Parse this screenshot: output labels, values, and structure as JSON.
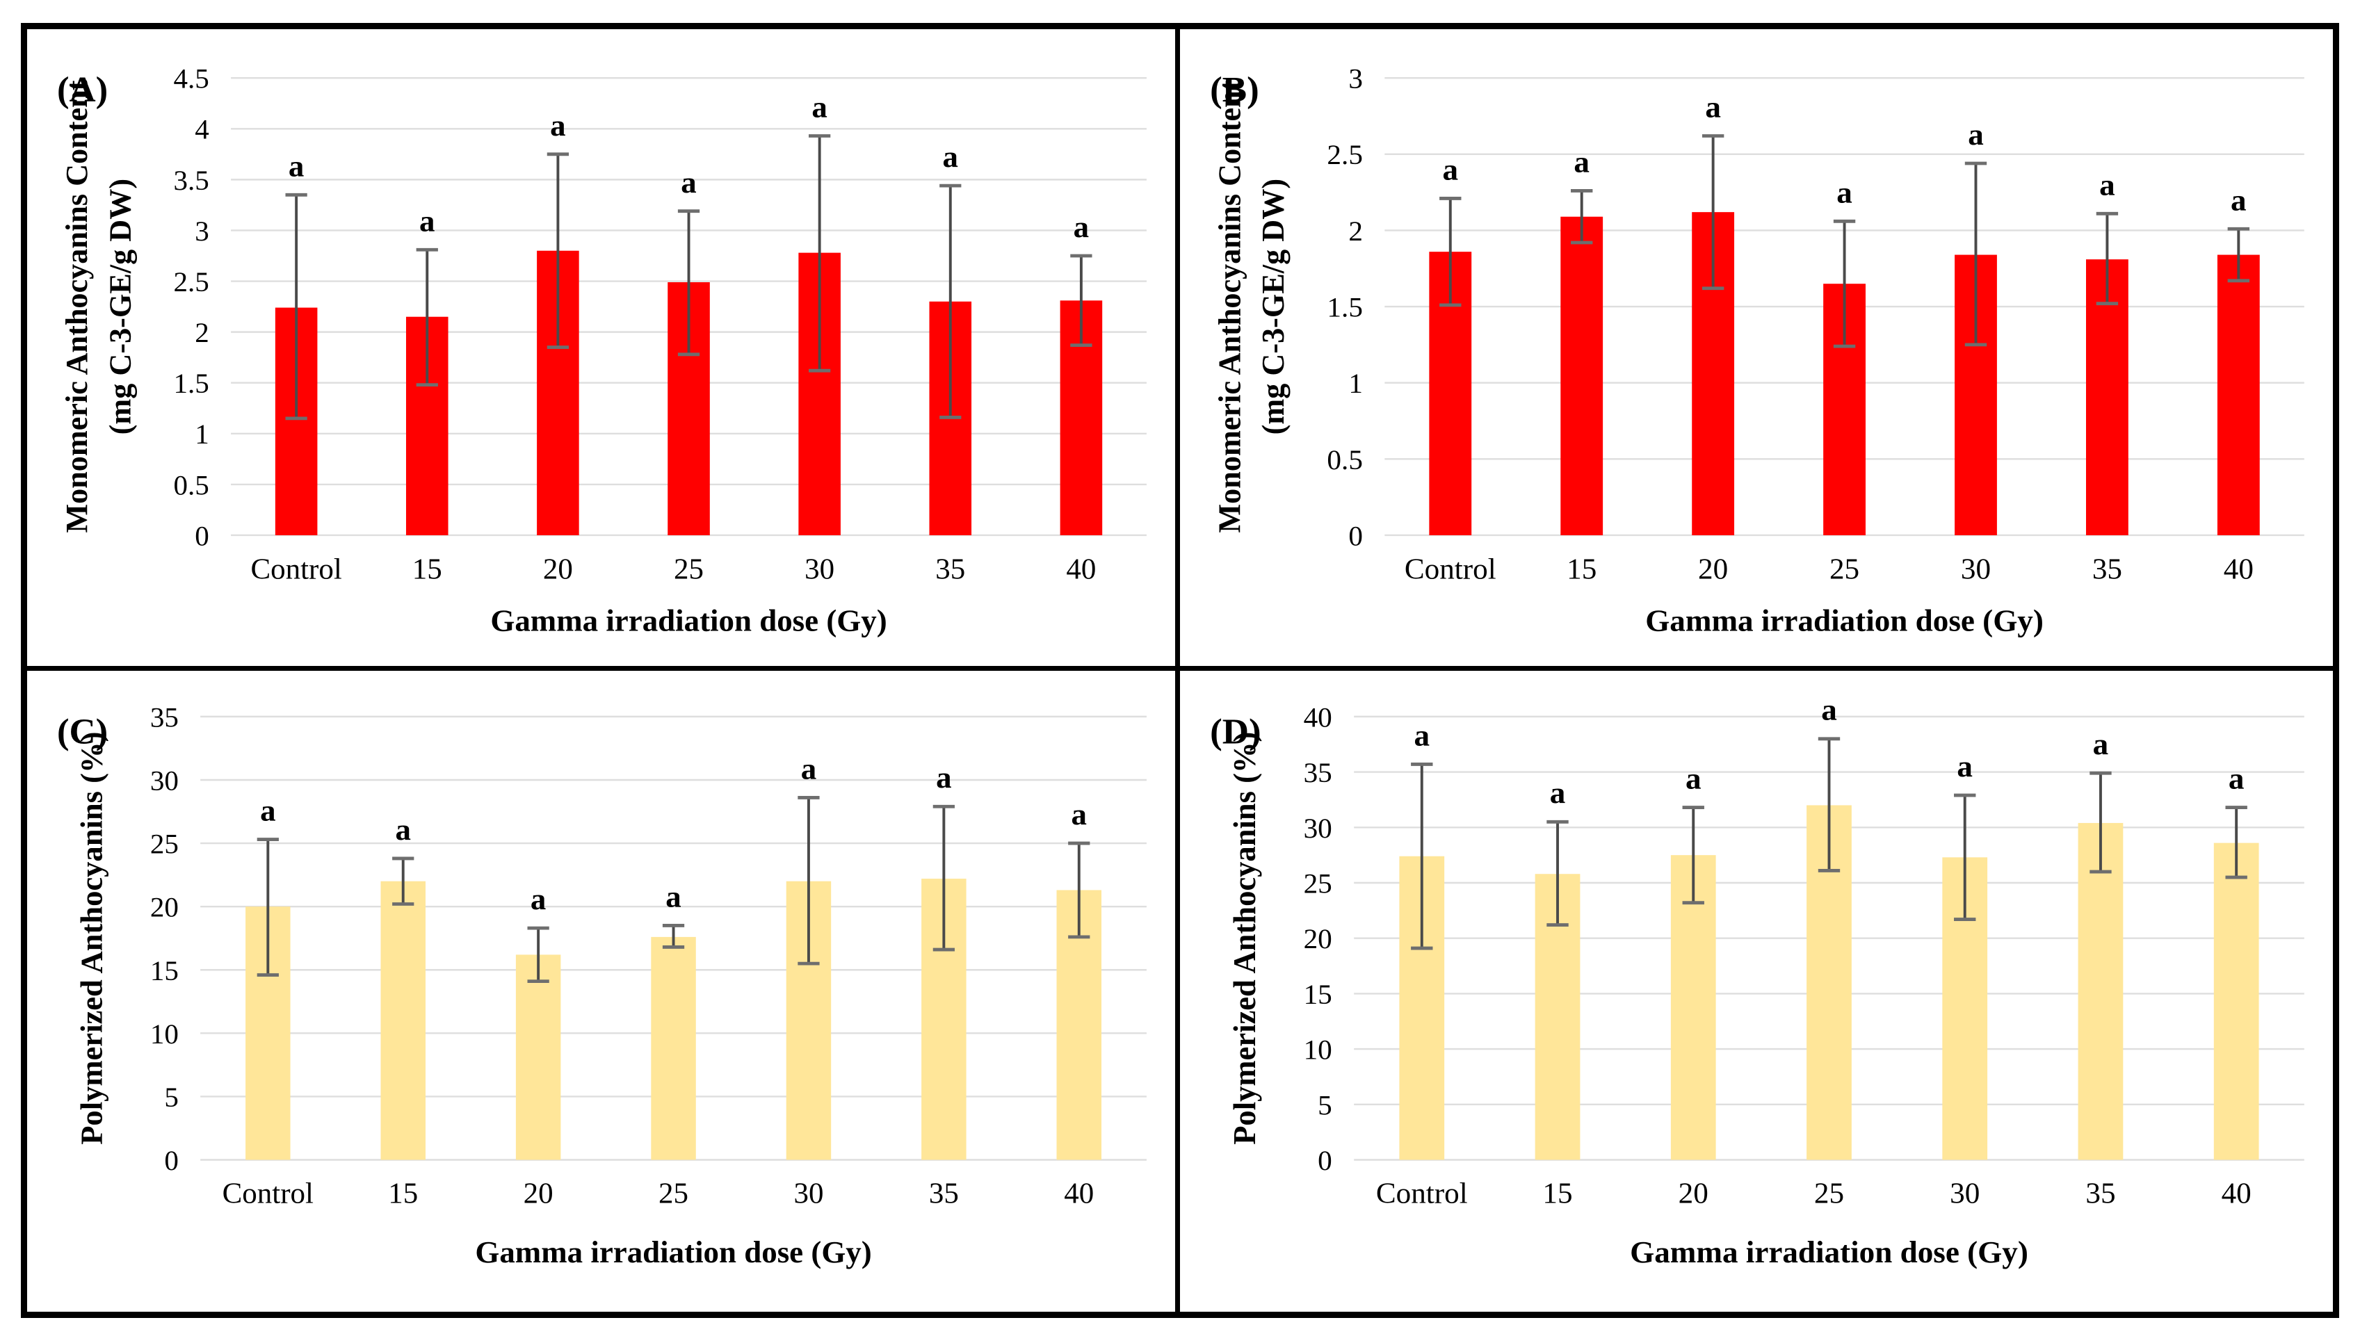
{
  "figure": {
    "background": "#ffffff",
    "frame_color": "#000000",
    "divider_color": "#000000",
    "gridline_color": "#dedede",
    "error_bar_color": "#4a4a4a",
    "error_cap_color": "#6e6e6e"
  },
  "chart_data": [
    {
      "type": "bar",
      "panel_label": "(A)",
      "ylabel_line1": "Monomeric Anthocyanins Content",
      "ylabel_line2": "(mg C-3-GE/g DW)",
      "xlabel": "Gamma irradiation dose (Gy)",
      "categories": [
        "Control",
        "15",
        "20",
        "25",
        "30",
        "35",
        "40"
      ],
      "values": [
        2.24,
        2.15,
        2.8,
        2.49,
        2.78,
        2.3,
        2.31
      ],
      "error_low": [
        1.15,
        1.48,
        1.85,
        1.78,
        1.62,
        1.16,
        1.87
      ],
      "error_high": [
        3.35,
        2.81,
        3.75,
        3.19,
        3.93,
        3.44,
        2.75
      ],
      "sig_labels": [
        "a",
        "a",
        "a",
        "a",
        "a",
        "a",
        "a"
      ],
      "ylim": [
        0,
        4.5
      ],
      "ytick_labels": [
        "0",
        "0.5",
        "1",
        "1.5",
        "2",
        "2.5",
        "3",
        "3.5",
        "4",
        "4.5"
      ],
      "bar_color": "#ff0000",
      "grid": true,
      "legend": "none"
    },
    {
      "type": "bar",
      "panel_label": "(B)",
      "ylabel_line1": "Monomeric Anthocyanins Content",
      "ylabel_line2": "(mg C-3-GE/g DW)",
      "xlabel": "Gamma irradiation dose (Gy)",
      "categories": [
        "Control",
        "15",
        "20",
        "25",
        "30",
        "35",
        "40"
      ],
      "values": [
        1.86,
        2.09,
        2.12,
        1.65,
        1.84,
        1.81,
        1.84
      ],
      "error_low": [
        1.51,
        1.92,
        1.62,
        1.24,
        1.25,
        1.52,
        1.67
      ],
      "error_high": [
        2.21,
        2.26,
        2.62,
        2.06,
        2.44,
        2.11,
        2.01
      ],
      "sig_labels": [
        "a",
        "a",
        "a",
        "a",
        "a",
        "a",
        "a"
      ],
      "ylim": [
        0,
        3
      ],
      "ytick_labels": [
        "0",
        "0.5",
        "1",
        "1.5",
        "2",
        "2.5",
        "3"
      ],
      "bar_color": "#ff0000",
      "grid": true,
      "legend": "none"
    },
    {
      "type": "bar",
      "panel_label": "(C)",
      "ylabel_line1": "Polymerized Anthocyanins (%)",
      "ylabel_line2": "",
      "xlabel": "Gamma irradiation dose (Gy)",
      "categories": [
        "Control",
        "15",
        "20",
        "25",
        "30",
        "35",
        "40"
      ],
      "values": [
        20.0,
        22.0,
        16.2,
        17.6,
        22.0,
        22.2,
        21.3
      ],
      "error_low": [
        14.6,
        20.2,
        14.1,
        16.8,
        15.5,
        16.6,
        17.6
      ],
      "error_high": [
        25.3,
        23.8,
        18.3,
        18.5,
        28.6,
        27.9,
        25.0
      ],
      "sig_labels": [
        "a",
        "a",
        "a",
        "a",
        "a",
        "a",
        "a"
      ],
      "ylim": [
        0,
        35
      ],
      "ytick_labels": [
        "0",
        "5",
        "10",
        "15",
        "20",
        "25",
        "30",
        "35"
      ],
      "bar_color": "#ffe699",
      "grid": true,
      "legend": "none"
    },
    {
      "type": "bar",
      "panel_label": "(D)",
      "ylabel_line1": "Polymerized Anthocyanins (%)",
      "ylabel_line2": "",
      "xlabel": "Gamma irradiation dose (Gy)",
      "categories": [
        "Control",
        "15",
        "20",
        "25",
        "30",
        "35",
        "40"
      ],
      "values": [
        27.4,
        25.8,
        27.5,
        32.0,
        27.3,
        30.4,
        28.6
      ],
      "error_low": [
        19.1,
        21.2,
        23.2,
        26.1,
        21.7,
        26.0,
        25.5
      ],
      "error_high": [
        35.7,
        30.5,
        31.8,
        38.0,
        32.9,
        34.9,
        31.8
      ],
      "sig_labels": [
        "a",
        "a",
        "a",
        "a",
        "a",
        "a",
        "a"
      ],
      "ylim": [
        0,
        40
      ],
      "ytick_labels": [
        "0",
        "5",
        "10",
        "15",
        "20",
        "25",
        "30",
        "35",
        "40"
      ],
      "bar_color": "#ffe699",
      "grid": true,
      "legend": "none"
    }
  ]
}
